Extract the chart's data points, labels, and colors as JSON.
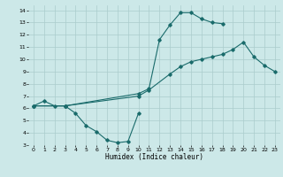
{
  "xlabel": "Humidex (Indice chaleur)",
  "bg_color": "#cce8e8",
  "grid_color": "#aacccc",
  "line_color": "#1a6b6b",
  "xlim": [
    -0.5,
    23.5
  ],
  "ylim": [
    3,
    14.4
  ],
  "xticks": [
    0,
    1,
    2,
    3,
    4,
    5,
    6,
    7,
    8,
    9,
    10,
    11,
    12,
    13,
    14,
    15,
    16,
    17,
    18,
    19,
    20,
    21,
    22,
    23
  ],
  "yticks": [
    3,
    4,
    5,
    6,
    7,
    8,
    9,
    10,
    11,
    12,
    13,
    14
  ],
  "line1_x": [
    0,
    1,
    2,
    3,
    4,
    5,
    6,
    7,
    8,
    9,
    10
  ],
  "line1_y": [
    6.2,
    6.6,
    6.2,
    6.2,
    5.6,
    4.6,
    4.1,
    3.4,
    3.2,
    3.3,
    5.6
  ],
  "line2_x": [
    0,
    3,
    10,
    11,
    12,
    13,
    14,
    15,
    16,
    17,
    18
  ],
  "line2_y": [
    6.2,
    6.2,
    7.2,
    7.6,
    11.6,
    12.8,
    13.8,
    13.8,
    13.3,
    13.0,
    12.9
  ],
  "line3_x": [
    0,
    3,
    10,
    11,
    13,
    14,
    15,
    16,
    17,
    18,
    19,
    20,
    21,
    22,
    23
  ],
  "line3_y": [
    6.2,
    6.2,
    7.0,
    7.5,
    8.8,
    9.4,
    9.8,
    10.0,
    10.2,
    10.4,
    10.8,
    11.4,
    10.2,
    9.5,
    9.0
  ]
}
